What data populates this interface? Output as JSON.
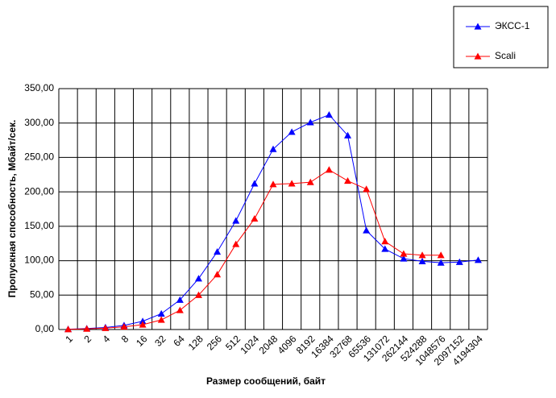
{
  "chart_data": {
    "type": "line",
    "x_label": "Размер сообщений, байт",
    "y_label": "Пропускная способность, Мбайт/сек.",
    "categories": [
      "1",
      "2",
      "4",
      "8",
      "16",
      "32",
      "64",
      "128",
      "256",
      "512",
      "1024",
      "2048",
      "4096",
      "8192",
      "16384",
      "32768",
      "65536",
      "131072",
      "262144",
      "524288",
      "1048576",
      "2097152",
      "4194304"
    ],
    "series": [
      {
        "name": "ЭКСС-1",
        "color": "#0000ff",
        "values": [
          0.5,
          1.5,
          3,
          6,
          12,
          23,
          43,
          74,
          113,
          158,
          212,
          262,
          287,
          301,
          312,
          282,
          144,
          117,
          103,
          99,
          97,
          98,
          101
        ]
      },
      {
        "name": "Scali",
        "color": "#ff0000",
        "values": [
          0.3,
          1,
          2,
          4,
          7,
          14,
          28,
          50,
          80,
          124,
          161,
          211,
          212,
          214,
          232,
          216,
          204,
          128,
          110,
          108,
          108,
          null,
          null
        ]
      }
    ],
    "ylim": [
      0,
      350
    ],
    "yticks": [
      {
        "value": 0,
        "label": "0,00"
      },
      {
        "value": 50,
        "label": "50,00"
      },
      {
        "value": 100,
        "label": "100,00"
      },
      {
        "value": 150,
        "label": "150,00"
      },
      {
        "value": 200,
        "label": "200,00"
      },
      {
        "value": 250,
        "label": "250,00"
      },
      {
        "value": 300,
        "label": "300,00"
      },
      {
        "value": 350,
        "label": "350,00"
      }
    ],
    "grid": true,
    "legend": "top-right"
  }
}
